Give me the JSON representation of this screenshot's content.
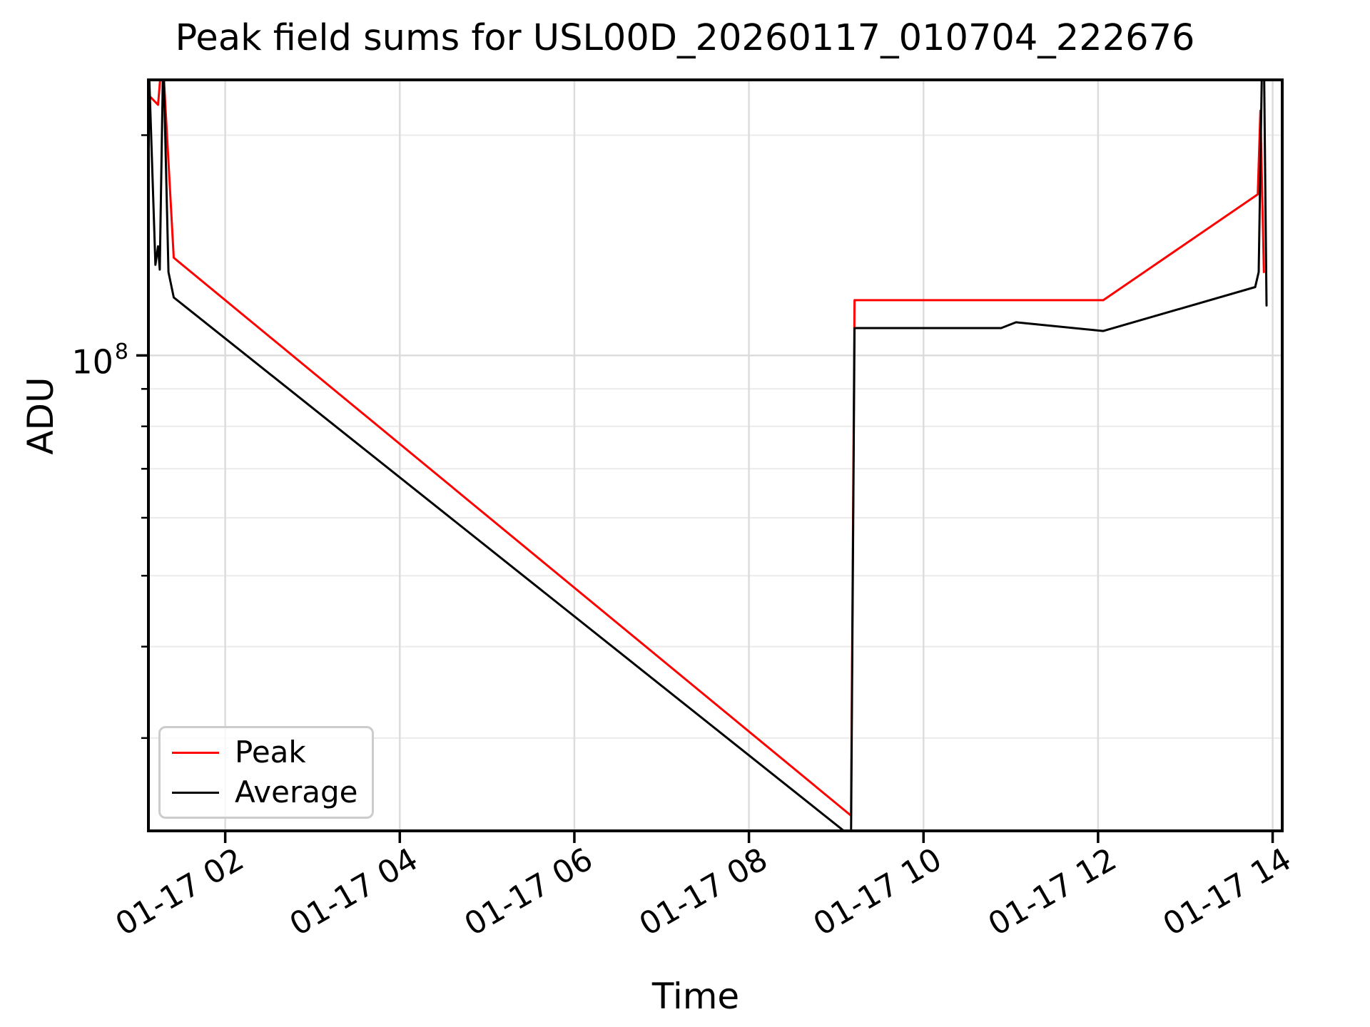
{
  "chart_data": {
    "type": "line",
    "title": "Peak field sums for USL00D_20260117_010704_222676",
    "xlabel": "Time",
    "ylabel": "ADU",
    "x_unit": "hours after 01-17 00:00 (labels show month-day hour)",
    "y_scale": "log",
    "xlim": [
      1.12,
      14.11
    ],
    "ylim": [
      22400000,
      238000000
    ],
    "grid": {
      "major_color": "#dcdcdc",
      "minor_color": "#ebebeb",
      "major_on": true,
      "minor_on": true
    },
    "legend_position": "lower left",
    "ytick_major": {
      "value": 100000000,
      "base": "10",
      "exp": "8"
    },
    "yticks_minor": [
      200000000,
      90000000,
      80000000,
      70000000,
      60000000,
      50000000,
      40000000,
      30000000
    ],
    "xticks": [
      {
        "t": 2,
        "label": "01-17 02"
      },
      {
        "t": 4,
        "label": "01-17 04"
      },
      {
        "t": 6,
        "label": "01-17 06"
      },
      {
        "t": 8,
        "label": "01-17 08"
      },
      {
        "t": 10,
        "label": "01-17 10"
      },
      {
        "t": 12,
        "label": "01-17 12"
      },
      {
        "t": 14,
        "label": "01-17 14"
      }
    ],
    "note": "points are [hours, ADU]; values of 260000000 represent spikes clipped at the top axis edge; 22000000 is clipped at the bottom edge",
    "series": [
      {
        "name": "Peak",
        "color": "#ff0000",
        "points": [
          [
            1.12,
            227000000
          ],
          [
            1.23,
            220000000
          ],
          [
            1.28,
            260000000
          ],
          [
            1.41,
            136000000
          ],
          [
            9.17,
            23500000
          ],
          [
            9.21,
            119000000
          ],
          [
            12.06,
            119000000
          ],
          [
            13.83,
            166000000
          ],
          [
            13.86,
            216000000
          ],
          [
            13.9,
            130000000
          ]
        ]
      },
      {
        "name": "Average",
        "color": "#000000",
        "points": [
          [
            1.12,
            260000000
          ],
          [
            1.2,
            133000000
          ],
          [
            1.23,
            141000000
          ],
          [
            1.25,
            131000000
          ],
          [
            1.29,
            260000000
          ],
          [
            1.35,
            130000000
          ],
          [
            1.41,
            120000000
          ],
          [
            9.17,
            22000000
          ],
          [
            9.21,
            109000000
          ],
          [
            10.89,
            109000000
          ],
          [
            11.06,
            111000000
          ],
          [
            12.06,
            108000000
          ],
          [
            13.8,
            124000000
          ],
          [
            13.84,
            130000000
          ],
          [
            13.88,
            260000000
          ],
          [
            13.9,
            260000000
          ],
          [
            13.93,
            117000000
          ]
        ]
      }
    ]
  }
}
